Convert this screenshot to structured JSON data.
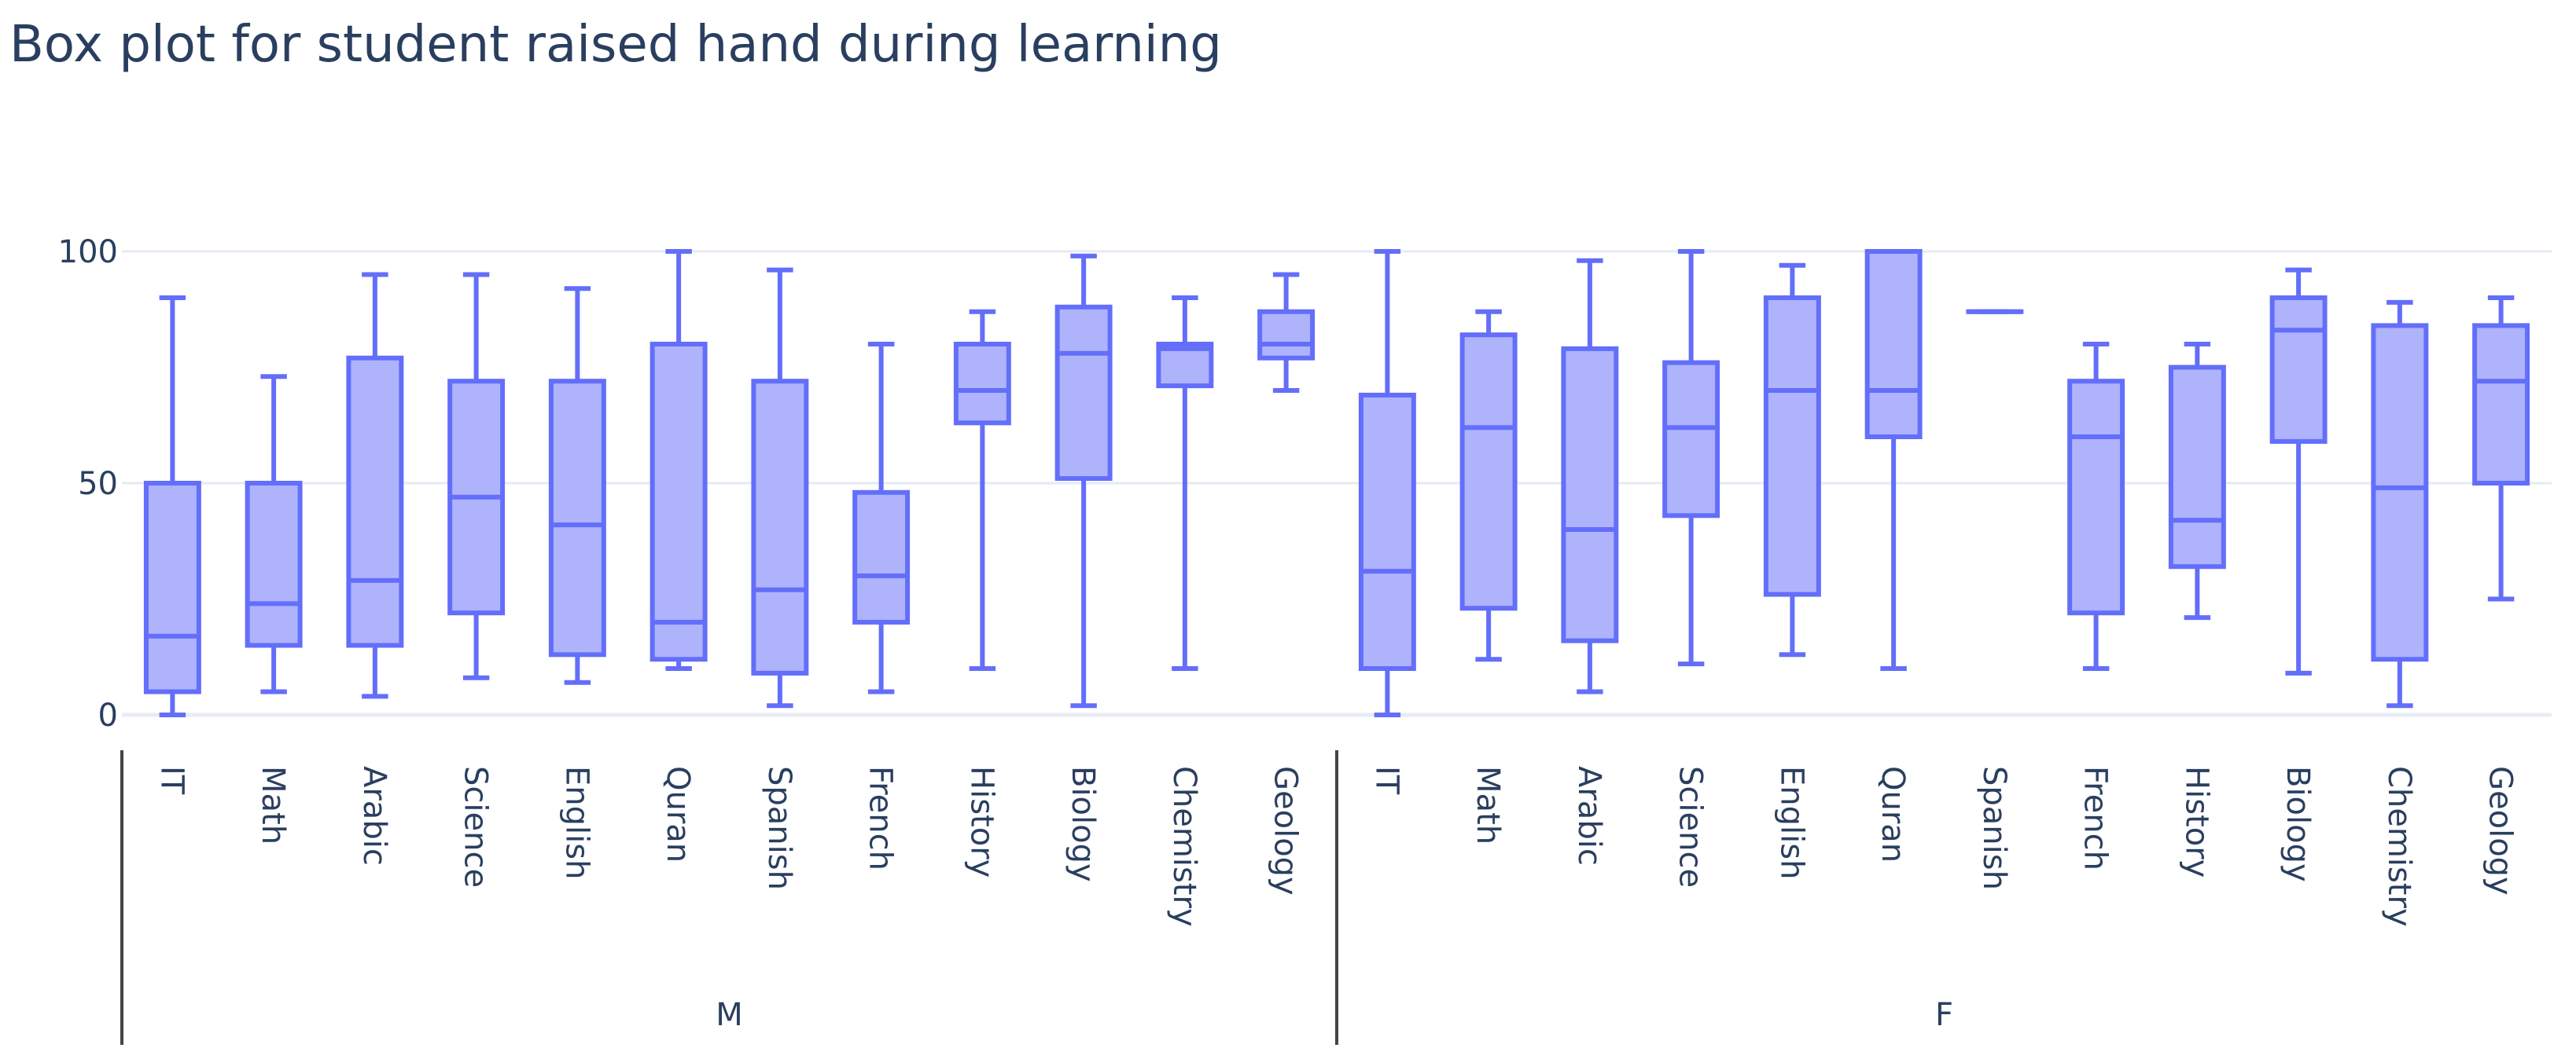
{
  "chart_data": {
    "type": "box",
    "title": "Box plot for student raised hand during learning",
    "xlabel": "",
    "ylabel": "",
    "ylim": [
      0,
      100
    ],
    "y_ticks": [
      0,
      50,
      100
    ],
    "grid": true,
    "color": "#636efa",
    "groups": [
      {
        "name": "M",
        "boxes": [
          {
            "label": "IT",
            "min": 0,
            "q1": 5,
            "median": 17,
            "q3": 50,
            "max": 90
          },
          {
            "label": "Math",
            "min": 5,
            "q1": 15,
            "median": 24,
            "q3": 50,
            "max": 73
          },
          {
            "label": "Arabic",
            "min": 4,
            "q1": 15,
            "median": 29,
            "q3": 77,
            "max": 95
          },
          {
            "label": "Science",
            "min": 8,
            "q1": 22,
            "median": 47,
            "q3": 72,
            "max": 95
          },
          {
            "label": "English",
            "min": 7,
            "q1": 13,
            "median": 41,
            "q3": 72,
            "max": 92
          },
          {
            "label": "Quran",
            "min": 10,
            "q1": 12,
            "median": 20,
            "q3": 80,
            "max": 100
          },
          {
            "label": "Spanish",
            "min": 2,
            "q1": 9,
            "median": 27,
            "q3": 72,
            "max": 96
          },
          {
            "label": "French",
            "min": 5,
            "q1": 20,
            "median": 30,
            "q3": 48,
            "max": 80
          },
          {
            "label": "History",
            "min": 10,
            "q1": 63,
            "median": 70,
            "q3": 80,
            "max": 87
          },
          {
            "label": "Biology",
            "min": 2,
            "q1": 51,
            "median": 78,
            "q3": 88,
            "max": 99
          },
          {
            "label": "Chemistry",
            "min": 10,
            "q1": 71,
            "median": 79,
            "q3": 80,
            "max": 90
          },
          {
            "label": "Geology",
            "min": 70,
            "q1": 77,
            "median": 80,
            "q3": 87,
            "max": 95
          }
        ]
      },
      {
        "name": "F",
        "boxes": [
          {
            "label": "IT",
            "min": 0,
            "q1": 10,
            "median": 31,
            "q3": 69,
            "max": 100
          },
          {
            "label": "Math",
            "min": 12,
            "q1": 23,
            "median": 62,
            "q3": 82,
            "max": 87
          },
          {
            "label": "Arabic",
            "min": 5,
            "q1": 16,
            "median": 40,
            "q3": 79,
            "max": 98
          },
          {
            "label": "Science",
            "min": 11,
            "q1": 43,
            "median": 62,
            "q3": 76,
            "max": 100
          },
          {
            "label": "English",
            "min": 13,
            "q1": 26,
            "median": 70,
            "q3": 90,
            "max": 97
          },
          {
            "label": "Quran",
            "min": 10,
            "q1": 60,
            "median": 70,
            "q3": 100,
            "max": 100
          },
          {
            "label": "Spanish",
            "min": 87,
            "q1": 87,
            "median": 87,
            "q3": 87,
            "max": 87
          },
          {
            "label": "French",
            "min": 10,
            "q1": 22,
            "median": 60,
            "q3": 72,
            "max": 80
          },
          {
            "label": "History",
            "min": 21,
            "q1": 32,
            "median": 42,
            "q3": 75,
            "max": 80
          },
          {
            "label": "Biology",
            "min": 9,
            "q1": 59,
            "median": 83,
            "q3": 90,
            "max": 96
          },
          {
            "label": "Chemistry",
            "min": 2,
            "q1": 12,
            "median": 49,
            "q3": 84,
            "max": 89
          },
          {
            "label": "Geology",
            "min": 25,
            "q1": 50,
            "median": 72,
            "q3": 84,
            "max": 90
          }
        ]
      }
    ]
  }
}
